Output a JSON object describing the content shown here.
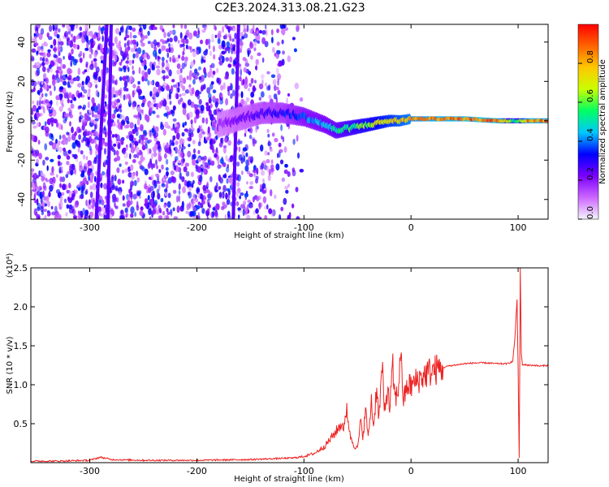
{
  "figure_title": "C2E3.2024.313.08.21.G23",
  "chart_data": [
    {
      "type": "heatmap",
      "xlabel": "Height of straight line (km)",
      "ylabel": "Frequency (Hz)",
      "xlim": [
        -355,
        128
      ],
      "ylim": [
        -50,
        49
      ],
      "x_ticks": [
        -300,
        -200,
        -100,
        0,
        100
      ],
      "y_ticks": [
        -40,
        -20,
        0,
        20,
        40
      ],
      "colorbar": {
        "label": "Normalized spectral amplitude",
        "range": [
          0,
          1
        ],
        "ticks": [
          "0.0",
          "0.2",
          "0.4",
          "0.6",
          "0.8"
        ],
        "colors": [
          "#f4f4ff",
          "#cc66ff",
          "#7b00ff",
          "#0000ff",
          "#00c8ff",
          "#00ff64",
          "#c8ff00",
          "#ffc800",
          "#ff6400",
          "#ff0000"
        ]
      },
      "ridge": {
        "x": [
          -180,
          -160,
          -140,
          -120,
          -100,
          -80,
          -70,
          -60,
          -50,
          -40,
          -30,
          -20,
          -10,
          0,
          20,
          50,
          80,
          97,
          110,
          128
        ],
        "frequency": [
          -2,
          1,
          4,
          4,
          2,
          -2,
          -5,
          -4,
          -3,
          -2,
          -1,
          0,
          0,
          1,
          1,
          1,
          0,
          0,
          0,
          0
        ],
        "amplitude": [
          0.2,
          0.25,
          0.3,
          0.35,
          0.45,
          0.5,
          0.55,
          0.6,
          0.65,
          0.7,
          0.75,
          0.8,
          0.85,
          0.9,
          0.95,
          0.97,
          0.98,
          0.6,
          0.95,
          0.95
        ]
      },
      "noise_region_x": [
        -355,
        -110
      ],
      "noise_region_sparse_x": [
        -160,
        -100
      ],
      "sweep_lines": [
        {
          "x_at_bottom": -294,
          "x_at_top": -284
        },
        {
          "x_at_bottom": -283,
          "x_at_top": -280
        },
        {
          "x_at_bottom": -166,
          "x_at_top": -161
        }
      ]
    },
    {
      "type": "line",
      "xlabel": "Height of straight line (km)",
      "ylabel": "SNR (10 * v/v)",
      "multiplier": "(x10⁴)",
      "xlim": [
        -355,
        128
      ],
      "ylim": [
        0,
        2.5
      ],
      "x_ticks": [
        -300,
        -200,
        -100,
        0,
        100
      ],
      "y_ticks": [
        "0.5",
        "1.0",
        "1.5",
        "2.0",
        "2.5"
      ],
      "series": [
        {
          "color": "#ee2222",
          "x": [
            -355,
            -330,
            -300,
            -290,
            -280,
            -250,
            -200,
            -150,
            -110,
            -100,
            -90,
            -80,
            -70,
            -65,
            -62,
            -60,
            -57,
            -55,
            -53,
            -50,
            -47,
            -45,
            -42,
            -40,
            -37,
            -35,
            -32,
            -30,
            -27,
            -25,
            -22,
            -20,
            -17,
            -15,
            -12,
            -10,
            -7,
            -5,
            -3,
            0,
            5,
            10,
            15,
            20,
            25,
            30,
            35,
            40,
            45,
            50,
            60,
            70,
            80,
            90,
            95,
            97,
            99,
            100,
            101,
            102,
            103,
            104,
            105,
            110,
            115,
            120,
            128
          ],
          "y": [
            0.02,
            0.02,
            0.03,
            0.07,
            0.04,
            0.03,
            0.03,
            0.04,
            0.06,
            0.08,
            0.12,
            0.22,
            0.4,
            0.5,
            0.45,
            0.72,
            0.35,
            0.28,
            0.22,
            0.18,
            0.52,
            0.35,
            0.68,
            0.3,
            0.8,
            0.45,
            1.0,
            0.55,
            1.25,
            0.65,
            0.95,
            0.7,
            1.2,
            0.82,
            0.9,
            1.45,
            0.8,
            0.9,
            1.0,
            0.98,
            1.05,
            1.1,
            1.15,
            1.18,
            1.2,
            1.22,
            1.24,
            1.25,
            1.26,
            1.27,
            1.28,
            1.28,
            1.27,
            1.27,
            1.3,
            1.6,
            2.1,
            1.2,
            0.05,
            2.5,
            1.4,
            1.25,
            1.26,
            1.25,
            1.25,
            1.24,
            1.25
          ]
        }
      ]
    }
  ]
}
